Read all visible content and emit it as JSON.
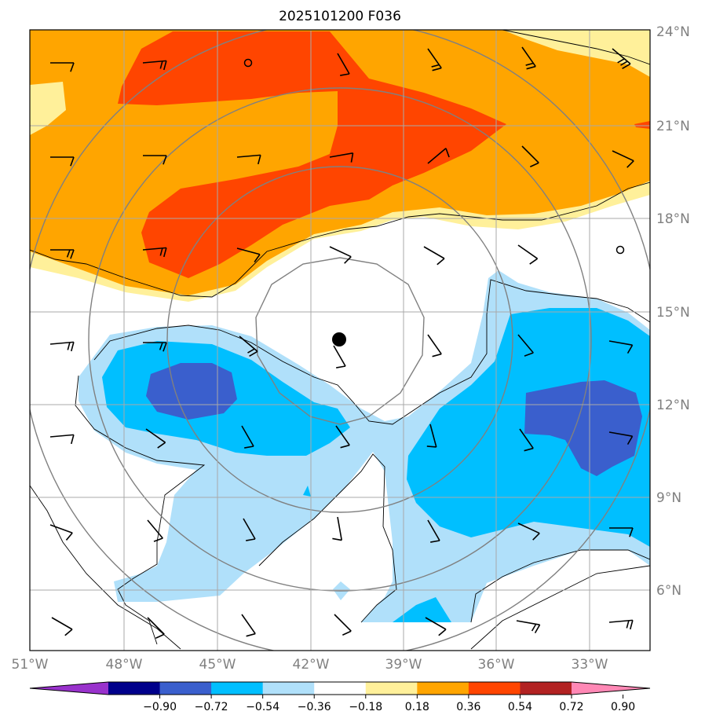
{
  "title": "2025101200 F036",
  "latitude_labels": [
    "24°N",
    "21°N",
    "18°N",
    "15°N",
    "12°N",
    "9°N",
    "6°N"
  ],
  "longitude_labels": [
    "51°W",
    "48°W",
    "45°W",
    "42°W",
    "39°W",
    "36°W",
    "33°W"
  ],
  "colorbar": {
    "tick_labels": [
      "−0.90",
      "−0.72",
      "−0.54",
      "−0.36",
      "−0.18",
      "0.18",
      "0.36",
      "0.54",
      "0.72",
      "0.90"
    ],
    "colors": [
      "#9932cc",
      "#00008b",
      "#3a5fcd",
      "#00bfff",
      "#b0e0fa",
      "#ffffff",
      "#fff09a",
      "#ffa500",
      "#ff4500",
      "#b22222",
      "#ff88b5"
    ]
  },
  "contour_colors": {
    "light_yellow": "#fff09a",
    "orange": "#ffa500",
    "red_orange": "#ff4500",
    "light_blue": "#b0e0fa",
    "deep_sky_blue": "#00bfff",
    "royal_blue": "#3a5fcd"
  },
  "storm_center": {
    "lat": 14.1,
    "lon": -41.1
  },
  "range_rings": "concentric circles around storm center",
  "wind_barbs": "grid of black wind barbs (station model)"
}
